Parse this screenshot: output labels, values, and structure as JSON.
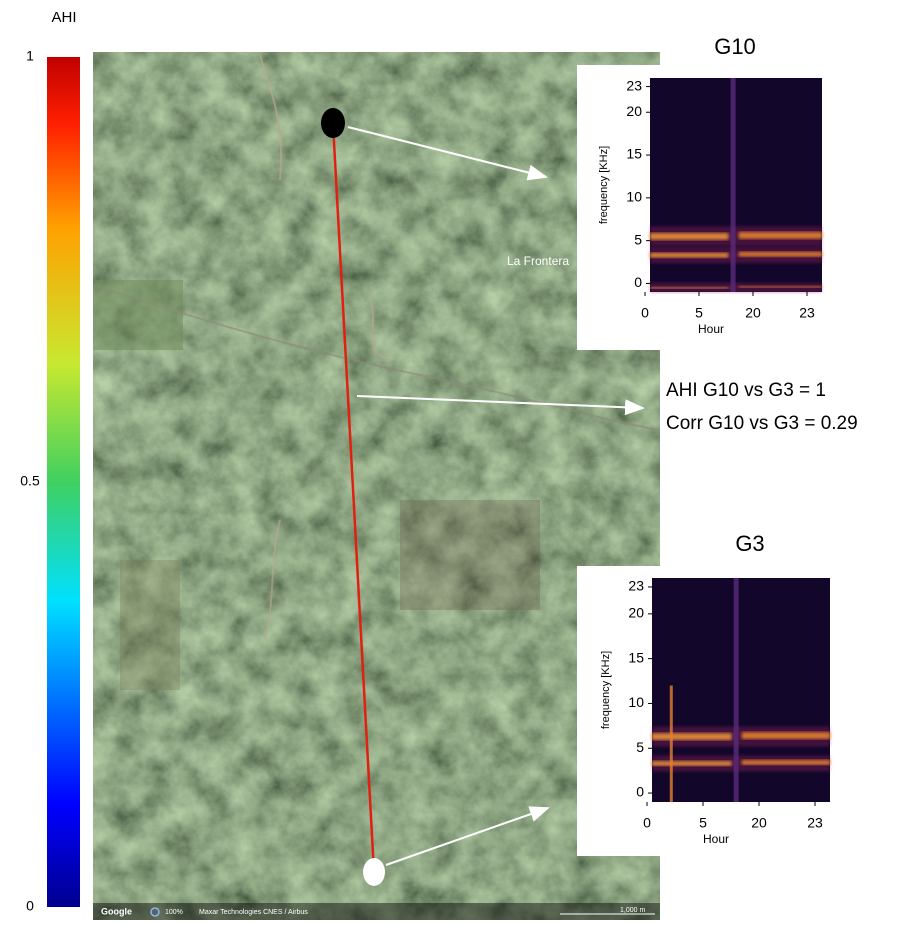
{
  "colorbar": {
    "label": "AHI",
    "range": [
      0,
      1
    ],
    "ticks": [
      1,
      0.5,
      0
    ]
  },
  "map": {
    "place_label": "La Frontera",
    "attribution": {
      "provider": "Google",
      "zoom": "100%",
      "imagery": "Maxar Technologies  CNES / Airbus",
      "scale": "1,000 m"
    }
  },
  "annotation": [
    "AHI G10 vs G3 = 1",
    "Corr G10 vs G3 = 0.29"
  ],
  "spectrograms": [
    {
      "title": "G10",
      "ylabel": "frequency [KHz]",
      "xlabel": "Hour",
      "ylim": [
        -1,
        24
      ],
      "yticks": [
        0,
        5,
        10,
        15,
        20,
        23
      ],
      "xticks": [
        0,
        5,
        20,
        23
      ]
    },
    {
      "title": "G3",
      "ylabel": "frequency [KHz]",
      "xlabel": "Hour",
      "ylim": [
        -1,
        24
      ],
      "yticks": [
        0,
        5,
        10,
        15,
        20,
        23
      ],
      "xticks": [
        0,
        5,
        20,
        23
      ]
    }
  ]
}
